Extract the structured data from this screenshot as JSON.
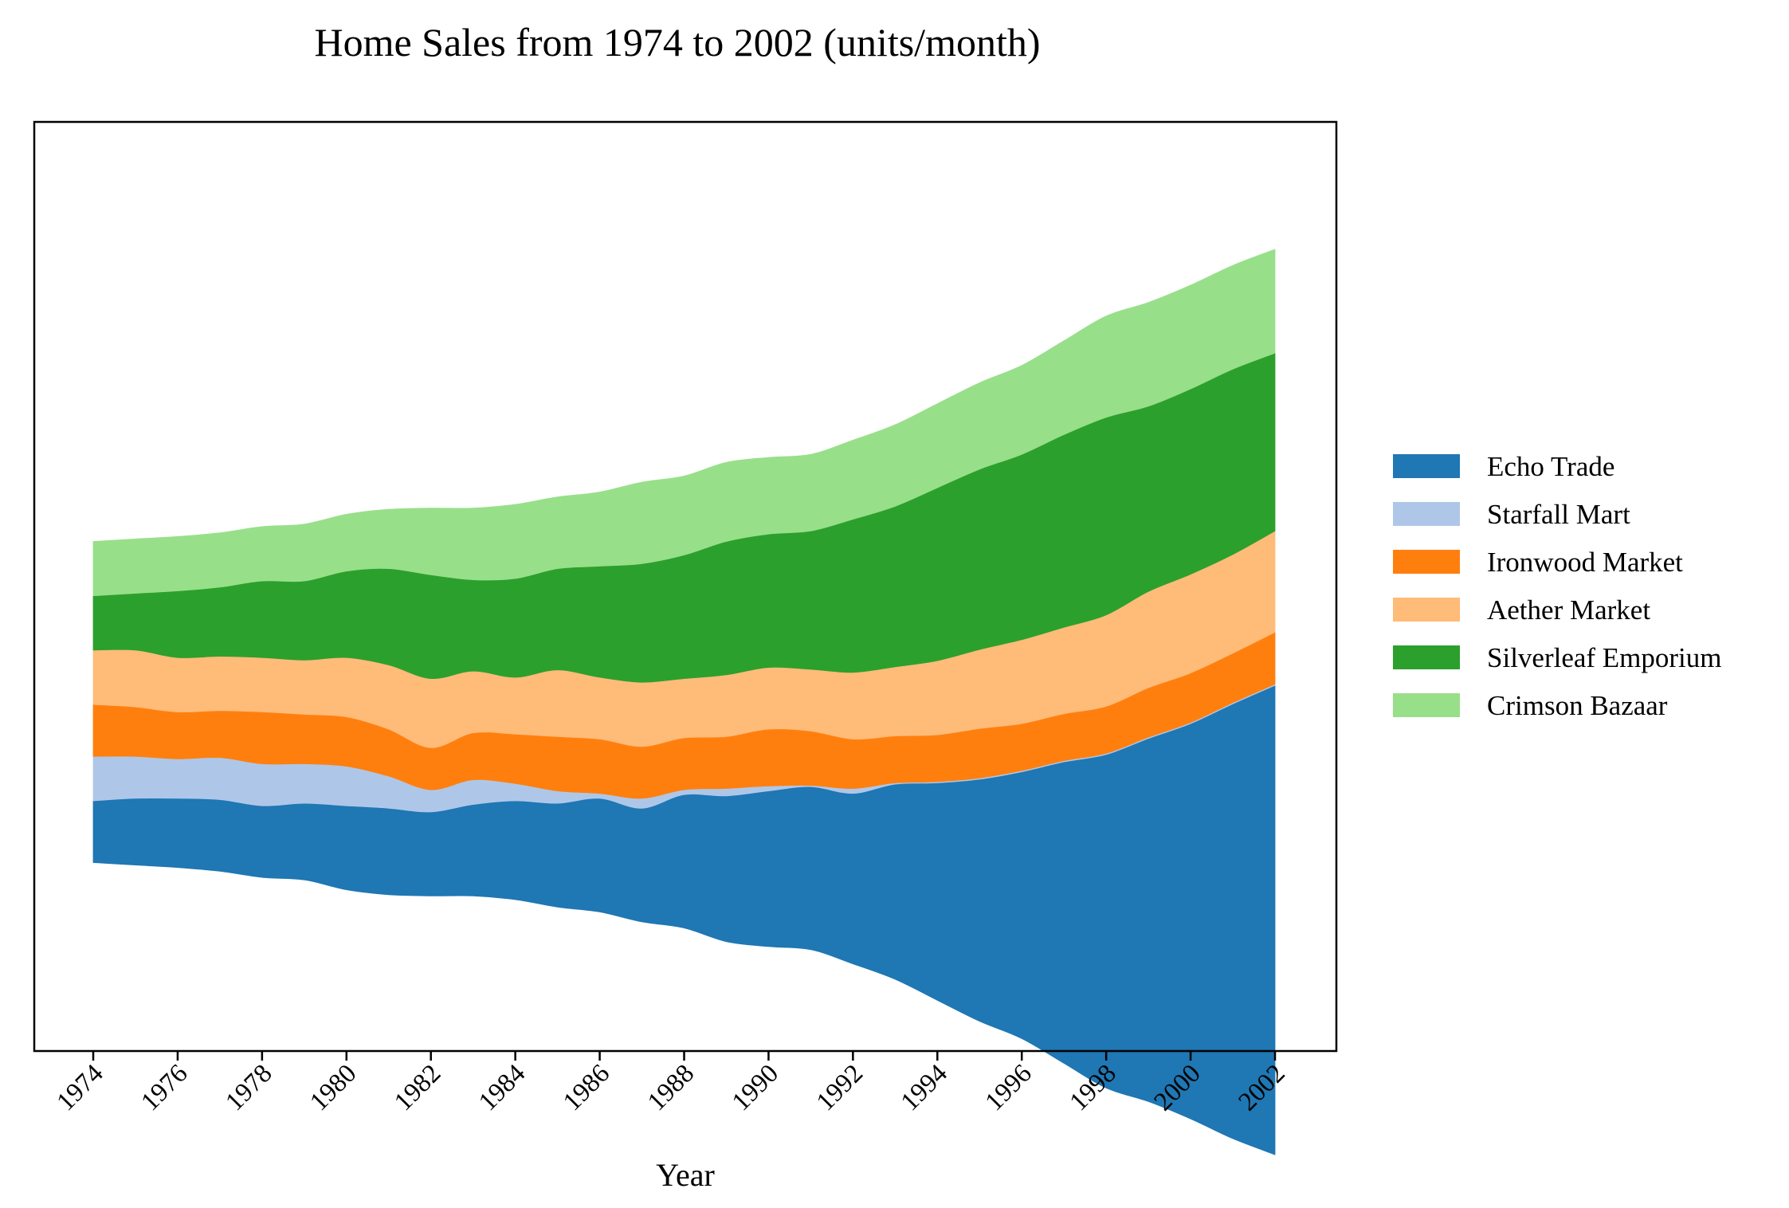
{
  "chart_data": {
    "type": "area",
    "subtype": "streamgraph",
    "title": "Home Sales from 1974 to 2002 (units/month)",
    "xlabel": "Year",
    "ylabel": "",
    "x": [
      1974,
      1975,
      1976,
      1977,
      1978,
      1979,
      1980,
      1981,
      1982,
      1983,
      1984,
      1985,
      1986,
      1987,
      1988,
      1989,
      1990,
      1991,
      1992,
      1993,
      1994,
      1995,
      1996,
      1997,
      1998,
      1999,
      2000,
      2001,
      2002
    ],
    "x_ticks": [
      "1974",
      "1976",
      "1978",
      "1980",
      "1982",
      "1984",
      "1986",
      "1988",
      "1990",
      "1992",
      "1994",
      "1996",
      "1998",
      "2000",
      "2002"
    ],
    "y_axis_visible": false,
    "grid": false,
    "legend_position": "right",
    "series": [
      {
        "name": "Echo Trade",
        "color": "#1f77b4",
        "values": [
          50,
          54,
          56,
          58,
          58,
          62,
          68,
          70,
          68,
          74,
          80,
          84,
          92,
          92,
          108,
          118,
          126,
          132,
          138,
          158,
          176,
          196,
          216,
          244,
          270,
          294,
          320,
          352,
          380
        ]
      },
      {
        "name": "Starfall Mart",
        "color": "#aec7e8",
        "values": [
          36,
          34,
          32,
          34,
          34,
          32,
          32,
          26,
          18,
          20,
          14,
          10,
          4,
          8,
          4,
          6,
          4,
          1,
          4,
          1,
          1,
          1,
          1,
          1,
          1,
          1,
          1,
          1,
          1
        ]
      },
      {
        "name": "Ironwood Market",
        "color": "#ff7f0e",
        "values": [
          42,
          40,
          38,
          38,
          42,
          40,
          40,
          38,
          34,
          38,
          40,
          44,
          44,
          42,
          42,
          42,
          46,
          44,
          40,
          38,
          38,
          40,
          38,
          38,
          38,
          40,
          40,
          40,
          42
        ]
      },
      {
        "name": "Aether Market",
        "color": "#ffbb78",
        "values": [
          44,
          46,
          44,
          44,
          44,
          44,
          48,
          52,
          56,
          50,
          46,
          54,
          50,
          52,
          48,
          50,
          50,
          50,
          54,
          56,
          60,
          64,
          68,
          70,
          74,
          78,
          80,
          80,
          82
        ]
      },
      {
        "name": "Silverleaf Emporium",
        "color": "#2ca02c",
        "values": [
          44,
          46,
          54,
          56,
          62,
          64,
          70,
          78,
          84,
          74,
          80,
          82,
          90,
          96,
          100,
          108,
          108,
          112,
          124,
          130,
          140,
          146,
          150,
          156,
          160,
          150,
          150,
          150,
          144
        ]
      },
      {
        "name": "Crimson Bazaar",
        "color": "#98df8a",
        "values": [
          44,
          44,
          44,
          44,
          44,
          46,
          46,
          48,
          54,
          58,
          60,
          58,
          60,
          66,
          64,
          64,
          62,
          62,
          64,
          66,
          68,
          70,
          72,
          76,
          82,
          84,
          84,
          84,
          84
        ]
      }
    ]
  }
}
